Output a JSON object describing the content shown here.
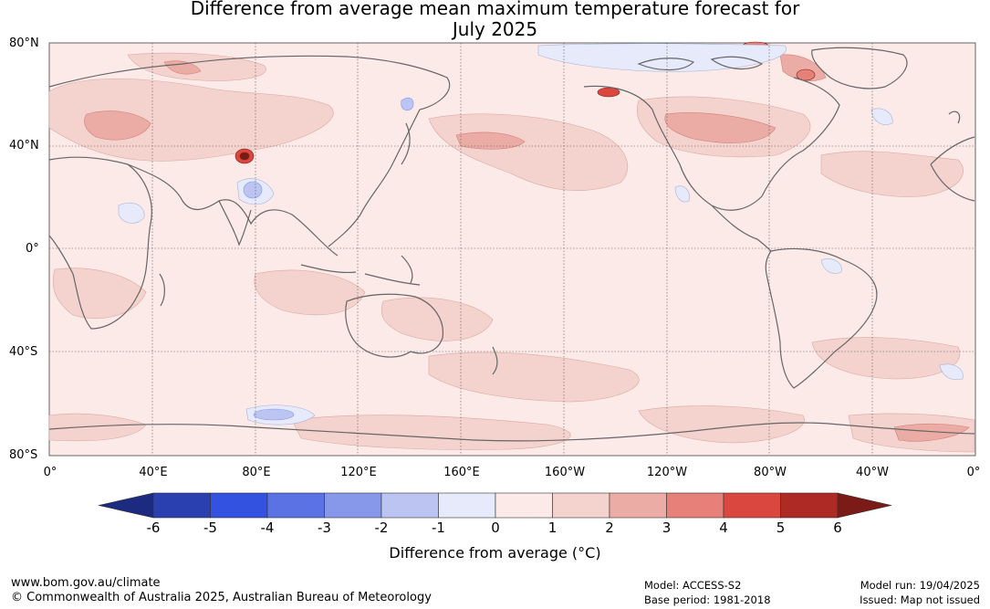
{
  "title": {
    "line1": "Difference from average mean maximum temperature forecast for",
    "line2": "July 2025"
  },
  "map": {
    "lat_labels": [
      "80°N",
      "40°N",
      "0°",
      "40°S",
      "80°S"
    ],
    "lon_labels": [
      "0°",
      "40°E",
      "80°E",
      "120°E",
      "160°E",
      "160°W",
      "120°W",
      "80°W",
      "40°W",
      "0°"
    ],
    "background_color": "#fbeae7",
    "coast_color": "#666666",
    "grid_color": "#555555"
  },
  "colorbar": {
    "ticks": [
      "-6",
      "-5",
      "-4",
      "-3",
      "-2",
      "-1",
      "0",
      "1",
      "2",
      "3",
      "4",
      "5",
      "6"
    ],
    "colors": [
      "#1c2a80",
      "#2a40b0",
      "#3352e0",
      "#5a72e4",
      "#8797ea",
      "#bcc4f2",
      "#e6eafa",
      "#fbeae7",
      "#f4d2ce",
      "#ecaca6",
      "#e68079",
      "#d9473e",
      "#ae2a24",
      "#7a1b18"
    ],
    "label": "Difference from average (°C)"
  },
  "footer": {
    "website": "www.bom.gov.au/climate",
    "copyright": "© Commonwealth of Australia 2025, Australian Bureau of Meteorology",
    "model": "Model: ACCESS-S2",
    "base_period": "Base period: 1981-2018",
    "model_run": "Model run: 19/04/2025",
    "issued": "Issued: Map not issued"
  }
}
